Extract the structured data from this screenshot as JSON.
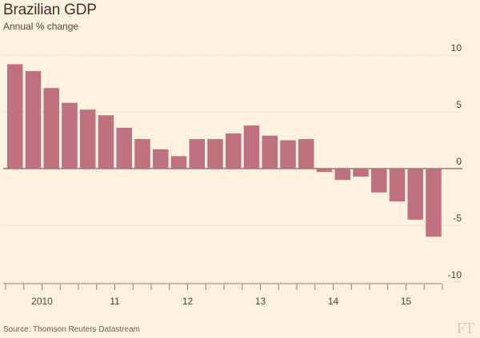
{
  "header": {
    "title": "Brazilian GDP",
    "subtitle": "Annual % change"
  },
  "footer": {
    "source": "Source: Thomson Reuters Datastream",
    "logo": "FT"
  },
  "colors": {
    "bar": "#c0717f",
    "background": "#fff1e0",
    "grid": "#d6cbbf",
    "axis": "#8a8280"
  },
  "chart_data": {
    "type": "bar",
    "title": "Brazilian GDP",
    "subtitle": "Annual % change",
    "xlabel": "",
    "ylabel": "",
    "ylim": [
      -10,
      10
    ],
    "yticks": [
      10,
      5,
      0,
      -5,
      -10
    ],
    "ytick_labels": [
      "10",
      "5",
      "0",
      "-5",
      "-10"
    ],
    "grid": true,
    "categories": [
      "2010 Q1",
      "2010 Q2",
      "2010 Q3",
      "2010 Q4",
      "2011 Q1",
      "2011 Q2",
      "2011 Q3",
      "2011 Q4",
      "2012 Q1",
      "2012 Q2",
      "2012 Q3",
      "2012 Q4",
      "2013 Q1",
      "2013 Q2",
      "2013 Q3",
      "2013 Q4",
      "2014 Q1",
      "2014 Q2",
      "2014 Q3",
      "2014 Q4",
      "2015 Q1",
      "2015 Q2",
      "2015 Q3",
      "2015 Q4"
    ],
    "values": [
      9.2,
      8.6,
      7.1,
      5.8,
      5.2,
      4.7,
      3.6,
      2.6,
      1.7,
      1.1,
      2.6,
      2.6,
      3.1,
      3.8,
      2.9,
      2.5,
      2.6,
      -0.3,
      -1.0,
      -0.7,
      -2.1,
      -2.9,
      -4.5,
      -6.0
    ],
    "x_tick_labels": [
      "2010",
      "11",
      "12",
      "13",
      "14",
      "15"
    ]
  }
}
